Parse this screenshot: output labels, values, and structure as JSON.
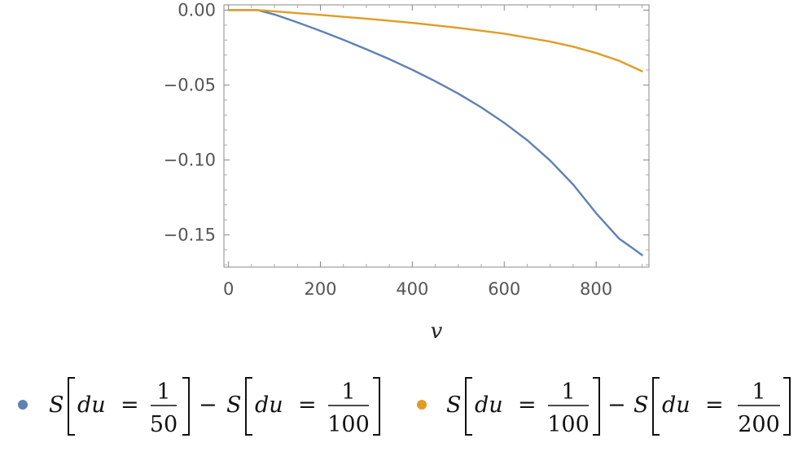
{
  "chart_data": {
    "type": "line",
    "xlabel": "v",
    "ylabel": "",
    "xlim": [
      -10,
      915
    ],
    "ylim": [
      -0.1715,
      0.0035
    ],
    "x_ticks": [
      0,
      200,
      400,
      600,
      800
    ],
    "x_tick_labels": [
      "0",
      "200",
      "400",
      "600",
      "800"
    ],
    "y_ticks": [
      0.0,
      -0.05,
      -0.1,
      -0.15
    ],
    "y_tick_labels": [
      "0.00",
      "−0.05",
      "−0.10",
      "−0.15"
    ],
    "grid": false,
    "legend_position": "bottom",
    "series": [
      {
        "name": "S[du = 1/50] − S[du = 1/100]",
        "color": "#5e81b5",
        "x": [
          0,
          50,
          64,
          100,
          150,
          200,
          250,
          300,
          350,
          400,
          450,
          500,
          550,
          600,
          650,
          700,
          750,
          800,
          850,
          880,
          900
        ],
        "y": [
          0,
          0,
          0,
          -0.0029,
          -0.0082,
          -0.0138,
          -0.0198,
          -0.0261,
          -0.0327,
          -0.0398,
          -0.0475,
          -0.0557,
          -0.0649,
          -0.0752,
          -0.0868,
          -0.1004,
          -0.1164,
          -0.1355,
          -0.1525,
          -0.159,
          -0.1635
        ]
      },
      {
        "name": "S[du = 1/100] − S[du = 1/200]",
        "color": "#e19c24",
        "x": [
          0,
          50,
          64,
          100,
          200,
          300,
          400,
          500,
          600,
          700,
          750,
          800,
          850,
          900
        ],
        "y": [
          0,
          0,
          0,
          -0.0008,
          -0.0032,
          -0.0057,
          -0.0085,
          -0.0118,
          -0.0157,
          -0.021,
          -0.0244,
          -0.0286,
          -0.0338,
          -0.0408
        ]
      }
    ],
    "legend": {
      "entries": [
        {
          "S": "S",
          "du": "du",
          "eq": "=",
          "num1": "1",
          "den1": "50",
          "minus": "−",
          "num2": "1",
          "den2": "100"
        },
        {
          "S": "S",
          "du": "du",
          "eq": "=",
          "num1": "1",
          "den1": "100",
          "minus": "−",
          "num2": "1",
          "den2": "200"
        }
      ]
    }
  }
}
